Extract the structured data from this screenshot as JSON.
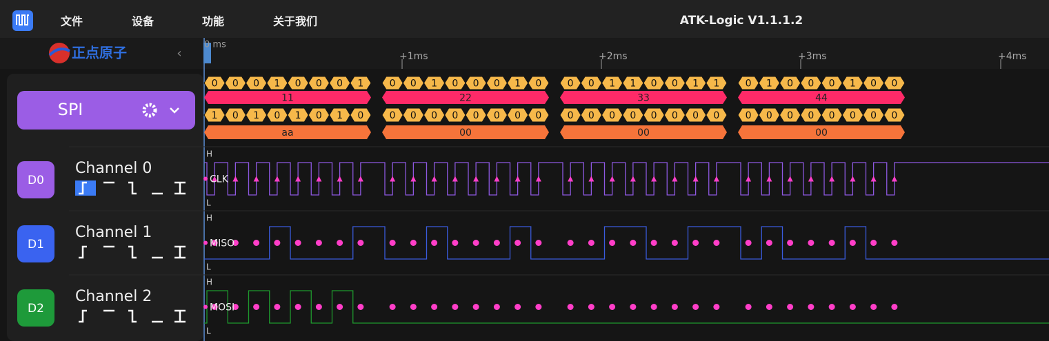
{
  "menu": [
    "文件",
    "设备",
    "功能",
    "关于我们"
  ],
  "app_title": "ATK-Logic  V1.1.1.2",
  "logo": "正点原子",
  "ruler": {
    "start": "0 ms",
    "ticks": [
      "+1ms",
      "+2ms",
      "+3ms",
      "+4ms"
    ]
  },
  "decoder": {
    "name": "SPI",
    "rows": [
      {
        "bytes": [
          {
            "bits": [
              "0",
              "0",
              "0",
              "1",
              "0",
              "0",
              "0",
              "1"
            ],
            "value": "11"
          },
          {
            "bits": [
              "0",
              "0",
              "1",
              "0",
              "0",
              "0",
              "1",
              "0"
            ],
            "value": "22"
          },
          {
            "bits": [
              "0",
              "0",
              "1",
              "1",
              "0",
              "0",
              "1",
              "1"
            ],
            "value": "33"
          },
          {
            "bits": [
              "0",
              "1",
              "0",
              "0",
              "0",
              "1",
              "0",
              "0"
            ],
            "value": "44"
          }
        ]
      },
      {
        "bytes": [
          {
            "bits": [
              "1",
              "0",
              "1",
              "0",
              "1",
              "0",
              "1",
              "0"
            ],
            "value": "aa"
          },
          {
            "bits": [
              "0",
              "0",
              "0",
              "0",
              "0",
              "0",
              "0",
              "0"
            ],
            "value": "00"
          },
          {
            "bits": [
              "0",
              "0",
              "0",
              "0",
              "0",
              "0",
              "0",
              "0"
            ],
            "value": "00"
          },
          {
            "bits": [
              "0",
              "0",
              "0",
              "0",
              "0",
              "0",
              "0",
              "0"
            ],
            "value": "00"
          }
        ]
      }
    ]
  },
  "channels": [
    {
      "badge": "D0",
      "name": "Channel 0",
      "signal": "CLK",
      "high": "H",
      "low": "L"
    },
    {
      "badge": "D1",
      "name": "Channel 1",
      "signal": "MISO",
      "high": "H",
      "low": "L"
    },
    {
      "badge": "D2",
      "name": "Channel 2",
      "signal": "MOSI",
      "high": "H",
      "low": "L"
    }
  ]
}
